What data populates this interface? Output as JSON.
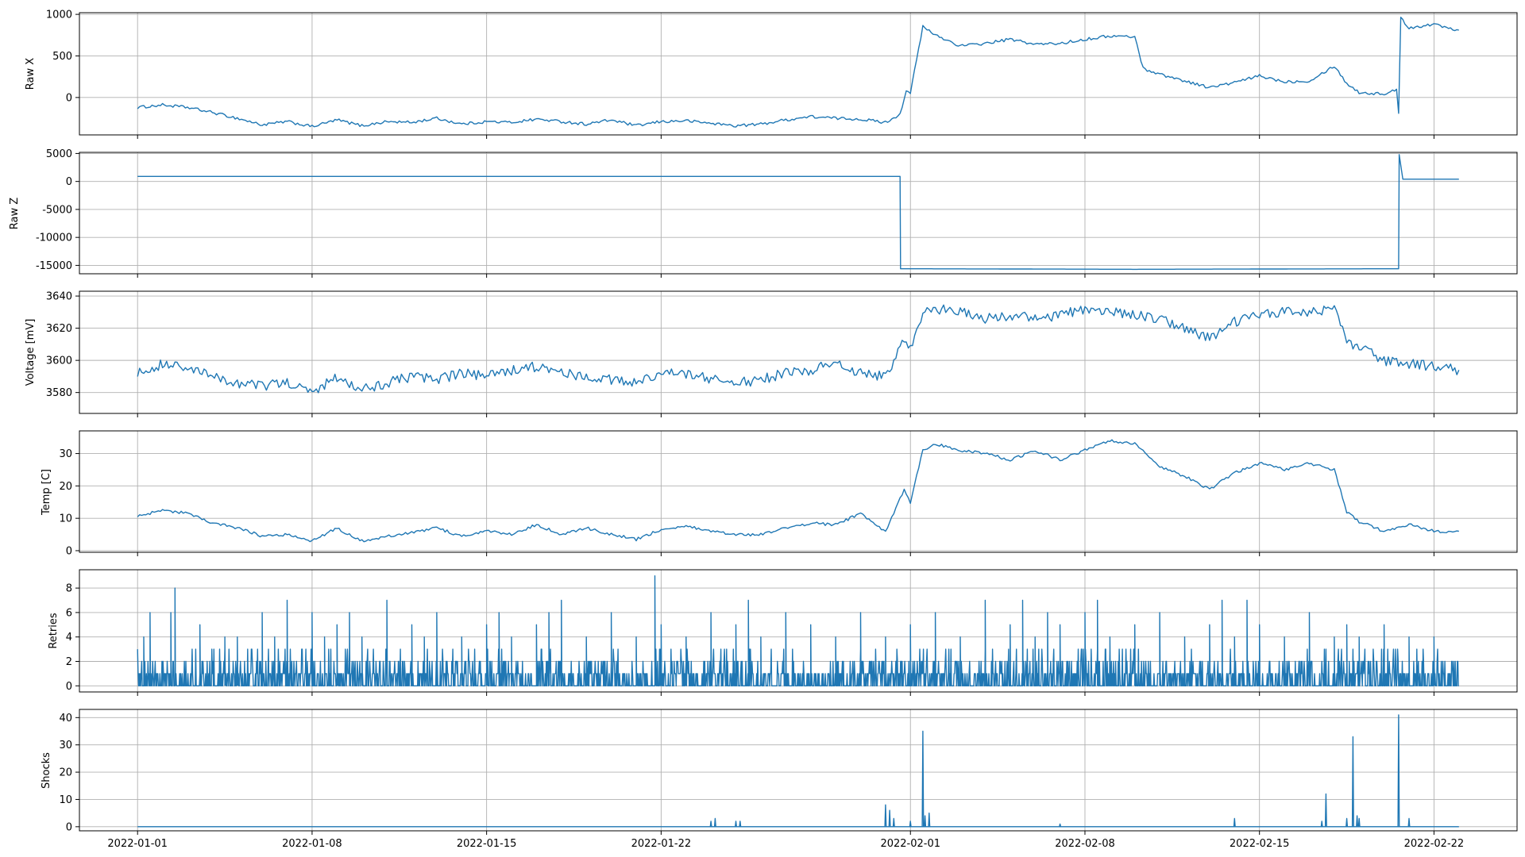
{
  "chart_data": [
    {
      "type": "line",
      "ylabel": "Raw X",
      "ylim": [
        -450,
        1020
      ],
      "yticks": [
        0,
        500,
        1000
      ],
      "x_range": [
        "2022-01-01",
        "2022-02-23"
      ],
      "grid": true,
      "series_color": "#1f77b4",
      "points": [
        [
          "2022-01-01",
          -120
        ],
        [
          "2022-01-02",
          -90
        ],
        [
          "2022-01-03",
          -120
        ],
        [
          "2022-01-04",
          -180
        ],
        [
          "2022-01-05",
          -250
        ],
        [
          "2022-01-06",
          -330
        ],
        [
          "2022-01-07",
          -290
        ],
        [
          "2022-01-08",
          -350
        ],
        [
          "2022-01-09",
          -270
        ],
        [
          "2022-01-10",
          -340
        ],
        [
          "2022-01-11",
          -290
        ],
        [
          "2022-01-12",
          -300
        ],
        [
          "2022-01-13",
          -250
        ],
        [
          "2022-01-14",
          -320
        ],
        [
          "2022-01-15",
          -290
        ],
        [
          "2022-01-16",
          -300
        ],
        [
          "2022-01-17",
          -260
        ],
        [
          "2022-01-18",
          -290
        ],
        [
          "2022-01-19",
          -320
        ],
        [
          "2022-01-20",
          -270
        ],
        [
          "2022-01-21",
          -340
        ],
        [
          "2022-01-22",
          -290
        ],
        [
          "2022-01-23",
          -280
        ],
        [
          "2022-01-24",
          -310
        ],
        [
          "2022-01-25",
          -340
        ],
        [
          "2022-01-26",
          -320
        ],
        [
          "2022-01-27",
          -270
        ],
        [
          "2022-01-28",
          -230
        ],
        [
          "2022-01-29",
          -250
        ],
        [
          "2022-01-30",
          -260
        ],
        [
          "2022-01-31",
          -300
        ],
        [
          "2022-01-31T14:00",
          -200
        ],
        [
          "2022-01-31T20:00",
          80
        ],
        [
          "2022-02-01",
          60
        ],
        [
          "2022-02-01T12:00",
          850
        ],
        [
          "2022-02-02",
          750
        ],
        [
          "2022-02-03",
          620
        ],
        [
          "2022-02-04",
          650
        ],
        [
          "2022-02-05",
          700
        ],
        [
          "2022-02-06",
          640
        ],
        [
          "2022-02-07",
          650
        ],
        [
          "2022-02-08",
          700
        ],
        [
          "2022-02-09",
          740
        ],
        [
          "2022-02-10",
          730
        ],
        [
          "2022-02-10T08:00",
          350
        ],
        [
          "2022-02-11",
          280
        ],
        [
          "2022-02-12",
          200
        ],
        [
          "2022-02-13",
          120
        ],
        [
          "2022-02-14",
          180
        ],
        [
          "2022-02-15",
          260
        ],
        [
          "2022-02-16",
          190
        ],
        [
          "2022-02-17",
          200
        ],
        [
          "2022-02-18",
          380
        ],
        [
          "2022-02-18T12:00",
          170
        ],
        [
          "2022-02-19",
          60
        ],
        [
          "2022-02-20",
          40
        ],
        [
          "2022-02-20T12:00",
          100
        ],
        [
          "2022-02-20T14:00",
          -190
        ],
        [
          "2022-02-20T16:00",
          950
        ],
        [
          "2022-02-21",
          840
        ],
        [
          "2022-02-22",
          880
        ],
        [
          "2022-02-23",
          810
        ]
      ]
    },
    {
      "type": "line",
      "ylabel": "Raw Z",
      "ylim": [
        -16500,
        5200
      ],
      "yticks": [
        -15000,
        -10000,
        -5000,
        0,
        5000
      ],
      "x_range": [
        "2022-01-01",
        "2022-02-23"
      ],
      "grid": true,
      "series_color": "#1f77b4",
      "points": [
        [
          "2022-01-01",
          900
        ],
        [
          "2022-01-10",
          900
        ],
        [
          "2022-01-20",
          900
        ],
        [
          "2022-01-31T14:00",
          900
        ],
        [
          "2022-01-31T14:30",
          -15600
        ],
        [
          "2022-02-10",
          -15700
        ],
        [
          "2022-02-20T14:00",
          -15600
        ],
        [
          "2022-02-20T14:30",
          4800
        ],
        [
          "2022-02-20T18:00",
          400
        ],
        [
          "2022-02-23",
          400
        ]
      ]
    },
    {
      "type": "line",
      "ylabel": "Voltage [mV]",
      "ylim": [
        3567,
        3643
      ],
      "yticks": [
        3580,
        3600,
        3620,
        3640
      ],
      "x_range": [
        "2022-01-01",
        "2022-02-23"
      ],
      "grid": true,
      "series_color": "#1f77b4",
      "points": [
        [
          "2022-01-01",
          3592
        ],
        [
          "2022-01-02",
          3598
        ],
        [
          "2022-01-03",
          3595
        ],
        [
          "2022-01-04",
          3590
        ],
        [
          "2022-01-05",
          3586
        ],
        [
          "2022-01-06",
          3584
        ],
        [
          "2022-01-07",
          3586
        ],
        [
          "2022-01-08",
          3580
        ],
        [
          "2022-01-09",
          3590
        ],
        [
          "2022-01-10",
          3582
        ],
        [
          "2022-01-11",
          3586
        ],
        [
          "2022-01-12",
          3590
        ],
        [
          "2022-01-13",
          3588
        ],
        [
          "2022-01-14",
          3592
        ],
        [
          "2022-01-15",
          3590
        ],
        [
          "2022-01-16",
          3594
        ],
        [
          "2022-01-17",
          3596
        ],
        [
          "2022-01-18",
          3592
        ],
        [
          "2022-01-19",
          3590
        ],
        [
          "2022-01-20",
          3588
        ],
        [
          "2022-01-21",
          3586
        ],
        [
          "2022-01-22",
          3592
        ],
        [
          "2022-01-23",
          3592
        ],
        [
          "2022-01-24",
          3588
        ],
        [
          "2022-01-25",
          3586
        ],
        [
          "2022-01-26",
          3588
        ],
        [
          "2022-01-27",
          3592
        ],
        [
          "2022-01-28",
          3594
        ],
        [
          "2022-01-29",
          3598
        ],
        [
          "2022-01-30",
          3592
        ],
        [
          "2022-01-31",
          3590
        ],
        [
          "2022-01-31T18:00",
          3612
        ],
        [
          "2022-02-01",
          3608
        ],
        [
          "2022-02-01T12:00",
          3630
        ],
        [
          "2022-02-02",
          3632
        ],
        [
          "2022-02-03",
          3630
        ],
        [
          "2022-02-04",
          3626
        ],
        [
          "2022-02-05",
          3628
        ],
        [
          "2022-02-06",
          3626
        ],
        [
          "2022-02-07",
          3628
        ],
        [
          "2022-02-08",
          3632
        ],
        [
          "2022-02-09",
          3630
        ],
        [
          "2022-02-10",
          3628
        ],
        [
          "2022-02-11",
          3626
        ],
        [
          "2022-02-12",
          3620
        ],
        [
          "2022-02-13",
          3614
        ],
        [
          "2022-02-14",
          3624
        ],
        [
          "2022-02-15",
          3628
        ],
        [
          "2022-02-16",
          3630
        ],
        [
          "2022-02-17",
          3630
        ],
        [
          "2022-02-18",
          3632
        ],
        [
          "2022-02-18T12:00",
          3612
        ],
        [
          "2022-02-19",
          3608
        ],
        [
          "2022-02-20",
          3600
        ],
        [
          "2022-02-21",
          3598
        ],
        [
          "2022-02-22",
          3596
        ],
        [
          "2022-02-23",
          3594
        ]
      ]
    },
    {
      "type": "line",
      "ylabel": "Temp [C]",
      "ylim": [
        -0.5,
        37
      ],
      "yticks": [
        0,
        10,
        20,
        30
      ],
      "x_range": [
        "2022-01-01",
        "2022-02-23"
      ],
      "grid": true,
      "series_color": "#1f77b4",
      "points": [
        [
          "2022-01-01",
          10.5
        ],
        [
          "2022-01-02",
          12.5
        ],
        [
          "2022-01-03",
          11.5
        ],
        [
          "2022-01-04",
          8.5
        ],
        [
          "2022-01-05",
          7
        ],
        [
          "2022-01-06",
          4.5
        ],
        [
          "2022-01-07",
          5
        ],
        [
          "2022-01-08",
          3
        ],
        [
          "2022-01-09",
          7
        ],
        [
          "2022-01-10",
          3
        ],
        [
          "2022-01-11",
          4.5
        ],
        [
          "2022-01-12",
          5.5
        ],
        [
          "2022-01-13",
          7
        ],
        [
          "2022-01-14",
          4.5
        ],
        [
          "2022-01-15",
          6
        ],
        [
          "2022-01-16",
          5
        ],
        [
          "2022-01-17",
          8
        ],
        [
          "2022-01-18",
          5
        ],
        [
          "2022-01-19",
          7
        ],
        [
          "2022-01-20",
          5
        ],
        [
          "2022-01-21",
          3.5
        ],
        [
          "2022-01-22",
          6.5
        ],
        [
          "2022-01-23",
          7.5
        ],
        [
          "2022-01-24",
          6
        ],
        [
          "2022-01-25",
          5
        ],
        [
          "2022-01-26",
          5
        ],
        [
          "2022-01-27",
          7
        ],
        [
          "2022-01-28",
          8.5
        ],
        [
          "2022-01-29",
          8
        ],
        [
          "2022-01-30",
          11.5
        ],
        [
          "2022-01-31",
          6
        ],
        [
          "2022-01-31T18:00",
          19
        ],
        [
          "2022-02-01",
          15
        ],
        [
          "2022-02-01T12:00",
          31
        ],
        [
          "2022-02-02",
          33
        ],
        [
          "2022-02-03",
          31
        ],
        [
          "2022-02-04",
          30
        ],
        [
          "2022-02-05",
          28
        ],
        [
          "2022-02-06",
          31
        ],
        [
          "2022-02-07",
          28
        ],
        [
          "2022-02-08",
          31
        ],
        [
          "2022-02-09",
          34
        ],
        [
          "2022-02-10",
          33
        ],
        [
          "2022-02-11",
          26
        ],
        [
          "2022-02-12",
          23
        ],
        [
          "2022-02-13",
          19
        ],
        [
          "2022-02-14",
          24
        ],
        [
          "2022-02-15",
          27
        ],
        [
          "2022-02-16",
          25
        ],
        [
          "2022-02-17",
          27
        ],
        [
          "2022-02-18",
          25
        ],
        [
          "2022-02-18T12:00",
          12
        ],
        [
          "2022-02-19",
          9
        ],
        [
          "2022-02-20",
          6
        ],
        [
          "2022-02-21",
          8
        ],
        [
          "2022-02-22",
          6
        ],
        [
          "2022-02-23",
          6
        ]
      ]
    },
    {
      "type": "line",
      "ylabel": "Retries",
      "ylim": [
        -0.5,
        9.5
      ],
      "yticks": [
        0,
        2,
        4,
        6,
        8
      ],
      "x_range": [
        "2022-01-01",
        "2022-02-23"
      ],
      "grid": true,
      "series_color": "#1f77b4",
      "baseline_max": 2,
      "frequent_max": 3,
      "spikes": [
        [
          "2022-01-01T06:00",
          4
        ],
        [
          "2022-01-01T12:00",
          6
        ],
        [
          "2022-01-02T12:00",
          8
        ],
        [
          "2022-01-02T08:00",
          6
        ],
        [
          "2022-01-03T12:00",
          5
        ],
        [
          "2022-01-04T12:00",
          4
        ],
        [
          "2022-01-05",
          4
        ],
        [
          "2022-01-06",
          6
        ],
        [
          "2022-01-06T12:00",
          4
        ],
        [
          "2022-01-07",
          7
        ],
        [
          "2022-01-08",
          6
        ],
        [
          "2022-01-08T12:00",
          4
        ],
        [
          "2022-01-09",
          5
        ],
        [
          "2022-01-09T12:00",
          6
        ],
        [
          "2022-01-10",
          4
        ],
        [
          "2022-01-11",
          7
        ],
        [
          "2022-01-12",
          5
        ],
        [
          "2022-01-12T12:00",
          4
        ],
        [
          "2022-01-13",
          6
        ],
        [
          "2022-01-14",
          4
        ],
        [
          "2022-01-15",
          5
        ],
        [
          "2022-01-15T12:00",
          6
        ],
        [
          "2022-01-16",
          4
        ],
        [
          "2022-01-17",
          5
        ],
        [
          "2022-01-17T12:00",
          6
        ],
        [
          "2022-01-18",
          7
        ],
        [
          "2022-01-19",
          4
        ],
        [
          "2022-01-20",
          6
        ],
        [
          "2022-01-21",
          4
        ],
        [
          "2022-01-21T18:00",
          9
        ],
        [
          "2022-01-22",
          5
        ],
        [
          "2022-01-23",
          4
        ],
        [
          "2022-01-24",
          6
        ],
        [
          "2022-01-25",
          5
        ],
        [
          "2022-01-25T12:00",
          7
        ],
        [
          "2022-01-26",
          4
        ],
        [
          "2022-01-27",
          6
        ],
        [
          "2022-01-28",
          5
        ],
        [
          "2022-01-29",
          4
        ],
        [
          "2022-01-30",
          6
        ],
        [
          "2022-01-31",
          4
        ],
        [
          "2022-02-01",
          5
        ],
        [
          "2022-02-02",
          6
        ],
        [
          "2022-02-03",
          4
        ],
        [
          "2022-02-04",
          7
        ],
        [
          "2022-02-05",
          5
        ],
        [
          "2022-02-05T12:00",
          7
        ],
        [
          "2022-02-06",
          4
        ],
        [
          "2022-02-06T12:00",
          6
        ],
        [
          "2022-02-07",
          5
        ],
        [
          "2022-02-08",
          6
        ],
        [
          "2022-02-08T12:00",
          7
        ],
        [
          "2022-02-09",
          4
        ],
        [
          "2022-02-10",
          5
        ],
        [
          "2022-02-11",
          6
        ],
        [
          "2022-02-12",
          4
        ],
        [
          "2022-02-13",
          5
        ],
        [
          "2022-02-13T12:00",
          7
        ],
        [
          "2022-02-14",
          4
        ],
        [
          "2022-02-14T12:00",
          7
        ],
        [
          "2022-02-15",
          5
        ],
        [
          "2022-02-16",
          4
        ],
        [
          "2022-02-17",
          6
        ],
        [
          "2022-02-18",
          4
        ],
        [
          "2022-02-18T12:00",
          5
        ],
        [
          "2022-02-19",
          4
        ],
        [
          "2022-02-20",
          5
        ],
        [
          "2022-02-21",
          4
        ],
        [
          "2022-02-22",
          4
        ]
      ]
    },
    {
      "type": "line",
      "ylabel": "Shocks",
      "ylim": [
        -1.5,
        43
      ],
      "yticks": [
        0,
        10,
        20,
        30,
        40
      ],
      "xticks": [
        "2022-01-01",
        "2022-01-08",
        "2022-01-15",
        "2022-01-22",
        "2022-02-01",
        "2022-02-08",
        "2022-02-15",
        "2022-02-22"
      ],
      "x_range": [
        "2022-01-01",
        "2022-02-23"
      ],
      "grid": true,
      "series_color": "#1f77b4",
      "spikes": [
        [
          "2022-01-24",
          2
        ],
        [
          "2022-01-24T04:00",
          3
        ],
        [
          "2022-01-25",
          2
        ],
        [
          "2022-01-25T04:00",
          2
        ],
        [
          "2022-01-31",
          8
        ],
        [
          "2022-01-31T04:00",
          6
        ],
        [
          "2022-01-31T08:00",
          3
        ],
        [
          "2022-02-01",
          2
        ],
        [
          "2022-02-01T12:00",
          35
        ],
        [
          "2022-02-01T14:00",
          4
        ],
        [
          "2022-02-01T18:00",
          5
        ],
        [
          "2022-02-07",
          1
        ],
        [
          "2022-02-14",
          3
        ],
        [
          "2022-02-17T12:00",
          2
        ],
        [
          "2022-02-17T16:00",
          12
        ],
        [
          "2022-02-18T12:00",
          3
        ],
        [
          "2022-02-18T18:00",
          33
        ],
        [
          "2022-02-18T22:00",
          4
        ],
        [
          "2022-02-19",
          3
        ],
        [
          "2022-02-20T14:00",
          41
        ],
        [
          "2022-02-21",
          3
        ]
      ]
    }
  ]
}
